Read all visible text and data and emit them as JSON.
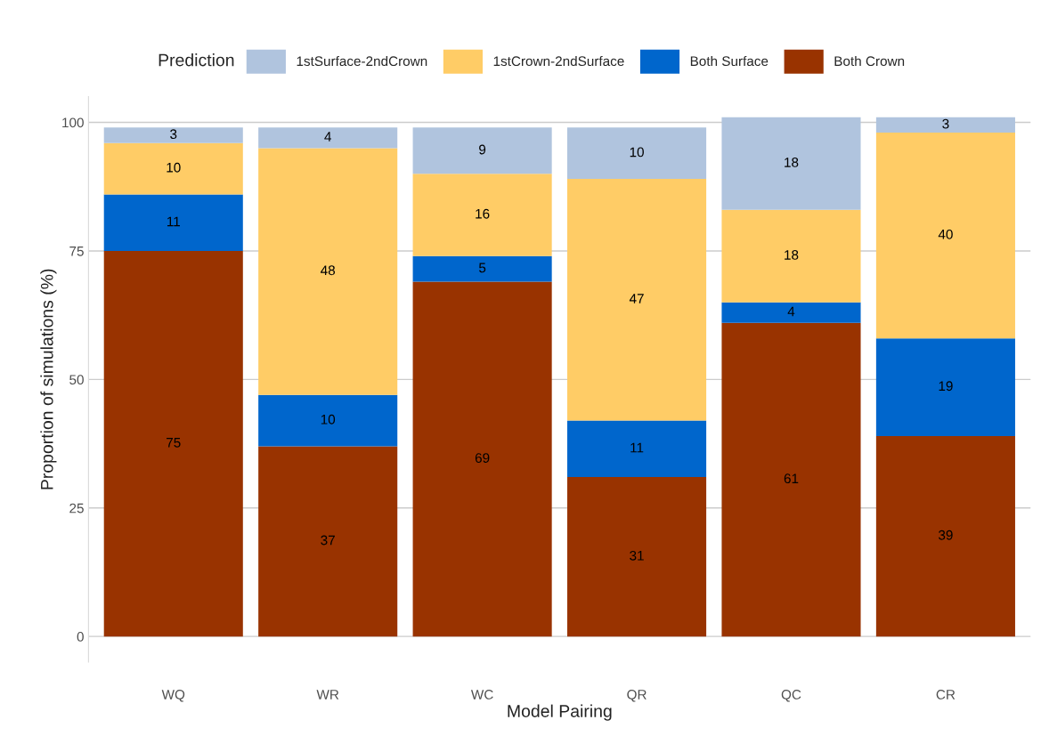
{
  "chart_data": {
    "type": "bar",
    "stacked": true,
    "xlabel": "Model Pairing",
    "ylabel": "Proportion of simulations (%)",
    "legend_title": "Prediction",
    "legend": "top",
    "categories": [
      "WQ",
      "WR",
      "WC",
      "QR",
      "QC",
      "CR"
    ],
    "series": [
      {
        "name": "Both Crown",
        "color": "#993300",
        "values": [
          75,
          37,
          69,
          31,
          61,
          39
        ]
      },
      {
        "name": "Both Surface",
        "color": "#0066cc",
        "values": [
          11,
          10,
          5,
          11,
          4,
          19
        ]
      },
      {
        "name": "1stCrown-2ndSurface",
        "color": "#ffcc66",
        "values": [
          10,
          48,
          16,
          47,
          18,
          40
        ]
      },
      {
        "name": "1stSurface-2ndCrown",
        "color": "#b0c4de",
        "values": [
          3,
          4,
          9,
          10,
          18,
          3
        ]
      }
    ],
    "data_labels": true,
    "ylim": [
      -5,
      105
    ],
    "yticks": [
      0,
      25,
      50,
      75,
      100
    ],
    "grid": "y"
  }
}
